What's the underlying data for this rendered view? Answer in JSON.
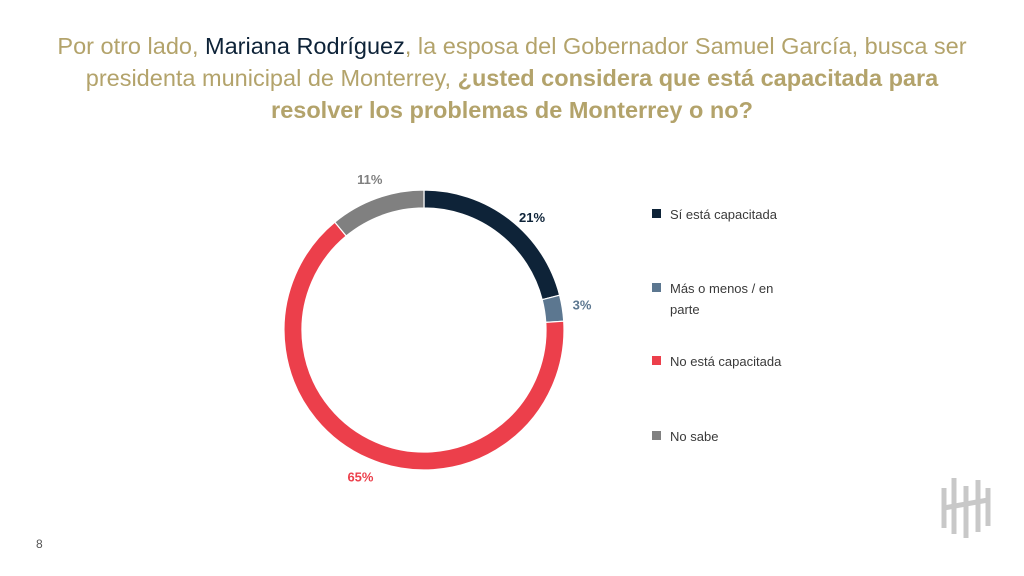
{
  "title": {
    "part1": "Por otro lado, ",
    "name": "Mariana Rodríguez",
    "part2": ", la esposa del Gobernador Samuel García, busca ser presidenta municipal de Monterrey, ",
    "question": "¿usted considera que está capacitada para resolver los problemas de Monterrey o no?"
  },
  "chart_data": {
    "type": "pie",
    "donut": true,
    "slices": [
      {
        "label": "Sí está capacitada",
        "value": 21,
        "display": "21%",
        "color": "#0e2338"
      },
      {
        "label": "Más o menos / en parte",
        "value": 3,
        "display": "3%",
        "color": "#5c7790"
      },
      {
        "label": "No está capacitada",
        "value": 65,
        "display": "65%",
        "color": "#ec3f4b"
      },
      {
        "label": "No sabe",
        "value": 11,
        "display": "11%",
        "color": "#808080"
      }
    ],
    "legend_position": "right"
  },
  "footer": {
    "page_number": "8"
  }
}
